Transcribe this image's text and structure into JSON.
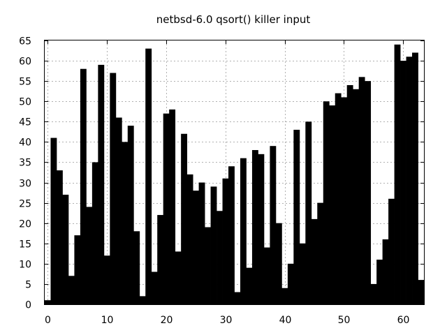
{
  "chart_data": {
    "type": "bar",
    "title": "netbsd-6.0 qsort() killer input",
    "xlabel": "",
    "ylabel": "",
    "x": [
      0,
      1,
      2,
      3,
      4,
      5,
      6,
      7,
      8,
      9,
      10,
      11,
      12,
      13,
      14,
      15,
      16,
      17,
      18,
      19,
      20,
      21,
      22,
      23,
      24,
      25,
      26,
      27,
      28,
      29,
      30,
      31,
      32,
      33,
      34,
      35,
      36,
      37,
      38,
      39,
      40,
      41,
      42,
      43,
      44,
      45,
      46,
      47,
      48,
      49,
      50,
      51,
      52,
      53,
      54,
      55,
      56,
      57,
      58,
      59,
      60,
      61,
      62,
      63
    ],
    "values": [
      1,
      41,
      33,
      27,
      7,
      17,
      58,
      24,
      35,
      59,
      12,
      57,
      46,
      40,
      44,
      18,
      2,
      63,
      8,
      22,
      47,
      48,
      13,
      42,
      32,
      28,
      30,
      19,
      29,
      23,
      31,
      34,
      3,
      36,
      9,
      38,
      37,
      14,
      39,
      20,
      4,
      10,
      43,
      15,
      45,
      21,
      25,
      50,
      49,
      52,
      51,
      54,
      53,
      56,
      55,
      5,
      11,
      16,
      26,
      64,
      60,
      61,
      62,
      6
    ],
    "xlim": [
      -0.5,
      63.5
    ],
    "ylim": [
      0,
      65
    ],
    "xticks": [
      "0",
      "10",
      "20",
      "30",
      "40",
      "50",
      "60"
    ],
    "yticks": [
      "0",
      "5",
      "10",
      "15",
      "20",
      "25",
      "30",
      "35",
      "40",
      "45",
      "50",
      "55",
      "60",
      "65"
    ],
    "grid": true,
    "bar_color": "#000000",
    "grid_color": "#b0b0b0"
  }
}
